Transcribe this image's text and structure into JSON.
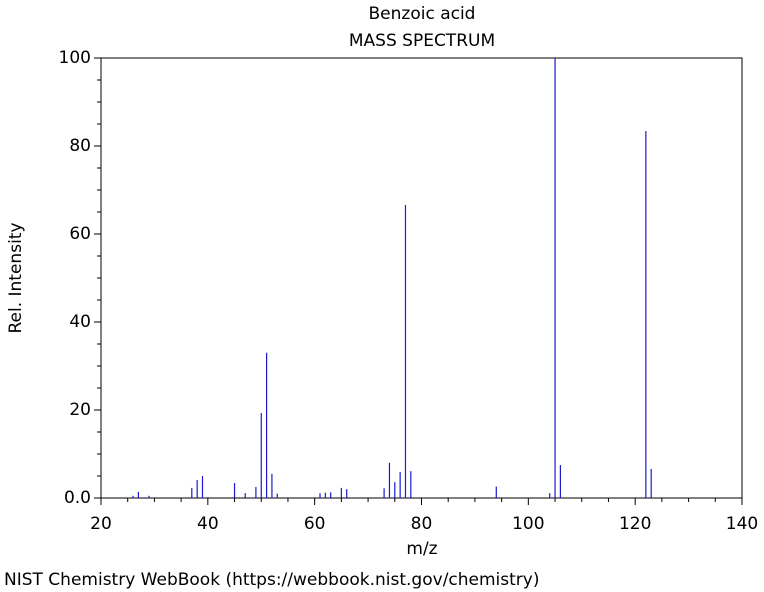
{
  "chart_data": {
    "type": "stem",
    "title": "Benzoic acid",
    "subtitle": "MASS SPECTRUM",
    "x_label": "m/z",
    "y_label": "Rel. Intensity",
    "source": "NIST Chemistry WebBook (https://webbook.nist.gov/chemistry)",
    "color": "#1a1acc",
    "x": [
      26,
      27,
      29,
      37,
      38,
      39,
      45,
      47,
      49,
      50,
      51,
      52,
      53,
      61,
      62,
      63,
      65,
      66,
      73,
      74,
      75,
      76,
      77,
      78,
      94,
      104,
      105,
      106,
      122,
      123
    ],
    "values": [
      0.5,
      1.4,
      0.5,
      2.3,
      4.1,
      5,
      3.4,
      1.1,
      2.5,
      19.3,
      33,
      5.5,
      1,
      1.1,
      1.2,
      1.3,
      2.3,
      2,
      2.2,
      8,
      3.6,
      5.9,
      66.6,
      6.1,
      2.6,
      1.1,
      100,
      7.5,
      83.4,
      6.6
    ],
    "xlim": [
      20,
      140
    ],
    "ylim": [
      0,
      100
    ],
    "xticks": [
      20,
      40,
      60,
      80,
      100,
      120,
      140
    ],
    "yticks": [
      {
        "value": 0,
        "label": "0.0"
      },
      20,
      40,
      60,
      80,
      100
    ],
    "xminorticks": [
      25,
      30,
      35,
      45,
      50,
      55,
      65,
      70,
      75,
      85,
      90,
      95,
      105,
      110,
      115,
      125,
      130,
      135
    ],
    "yminorticks": [
      5,
      10,
      15,
      25,
      30,
      35,
      45,
      50,
      55,
      65,
      70,
      75,
      85,
      90,
      95
    ]
  }
}
